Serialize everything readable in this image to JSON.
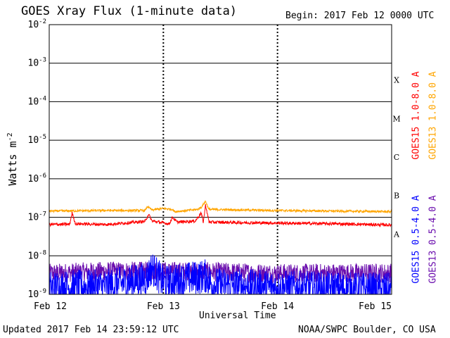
{
  "header": {
    "title": "GOES Xray Flux (1-minute data)",
    "begin": "Begin:  2017 Feb 12 0000 UTC"
  },
  "footer": {
    "updated": "Updated 2017 Feb 14 23:59:12 UTC",
    "source": "NOAA/SWPC Boulder, CO USA"
  },
  "colors": {
    "goes15_long": "#ff0000",
    "goes13_long": "#ffa500",
    "goes15_short": "#0000ff",
    "goes13_short": "#6a0dad"
  },
  "chart_data": {
    "type": "line",
    "xlabel": "Universal Time",
    "ylabel_base": "Watts m",
    "ylabel_exp": "-2",
    "yscale": "log",
    "ylim": [
      1e-09,
      0.01
    ],
    "y_ticks": [
      {
        "base": "10",
        "exp": "-2",
        "value": 0.01
      },
      {
        "base": "10",
        "exp": "-3",
        "value": 0.001
      },
      {
        "base": "10",
        "exp": "-4",
        "value": 0.0001
      },
      {
        "base": "10",
        "exp": "-5",
        "value": 1e-05
      },
      {
        "base": "10",
        "exp": "-6",
        "value": 1e-06
      },
      {
        "base": "10",
        "exp": "-7",
        "value": 1e-07
      },
      {
        "base": "10",
        "exp": "-8",
        "value": 1e-08
      },
      {
        "base": "10",
        "exp": "-9",
        "value": 1e-09
      }
    ],
    "x_ticks": [
      "Feb 12",
      "Feb 13",
      "Feb 14",
      "Feb 15"
    ],
    "flare_classes": [
      {
        "label": "X",
        "value": 0.00031
      },
      {
        "label": "M",
        "value": 3.1e-05
      },
      {
        "label": "C",
        "value": 3.1e-06
      },
      {
        "label": "B",
        "value": 3.1e-07
      },
      {
        "label": "A",
        "value": 3.1e-08
      }
    ],
    "series": [
      {
        "name": "GOES15 1.0-8.0 A",
        "key": "goes15_long",
        "points": [
          [
            0,
            6.5e-08
          ],
          [
            0.18,
            6.6e-08
          ],
          [
            0.2,
            1.3e-07
          ],
          [
            0.23,
            6.8e-08
          ],
          [
            0.5,
            6.5e-08
          ],
          [
            0.84,
            7.8e-08
          ],
          [
            0.87,
            1.2e-07
          ],
          [
            0.9,
            8e-08
          ],
          [
            1.0,
            7.2e-08
          ],
          [
            1.05,
            6.7e-08
          ],
          [
            1.08,
            1e-07
          ],
          [
            1.12,
            7.5e-08
          ],
          [
            1.28,
            8e-08
          ],
          [
            1.33,
            1.3e-07
          ],
          [
            1.35,
            7.6e-08
          ],
          [
            1.37,
            2.1e-07
          ],
          [
            1.4,
            7.5e-08
          ],
          [
            1.8,
            7.2e-08
          ],
          [
            2.5,
            6.8e-08
          ],
          [
            3.0,
            6.3e-08
          ]
        ]
      },
      {
        "name": "GOES13 1.0-8.0 A",
        "key": "goes13_long",
        "points": [
          [
            0,
            1.45e-07
          ],
          [
            0.5,
            1.5e-07
          ],
          [
            0.84,
            1.5e-07
          ],
          [
            0.86,
            1.9e-07
          ],
          [
            0.9,
            1.55e-07
          ],
          [
            1.0,
            1.7e-07
          ],
          [
            1.08,
            1.6e-07
          ],
          [
            1.1,
            1.4e-07
          ],
          [
            1.3,
            1.6e-07
          ],
          [
            1.33,
            1.8e-07
          ],
          [
            1.37,
            2.6e-07
          ],
          [
            1.4,
            1.6e-07
          ],
          [
            2.0,
            1.5e-07
          ],
          [
            3.0,
            1.4e-07
          ]
        ]
      },
      {
        "name": "GOES15 0.5-4.0 A",
        "key": "goes15_short",
        "points": [
          [
            0,
            1.5e-09
          ],
          [
            0.5,
            1.6e-09
          ],
          [
            0.85,
            2.5e-09
          ],
          [
            0.9,
            5e-09
          ],
          [
            1.0,
            2e-09
          ],
          [
            1.38,
            3e-09
          ],
          [
            1.42,
            1.8e-09
          ],
          [
            2.0,
            1.5e-09
          ],
          [
            3.0,
            1.3e-09
          ]
        ]
      },
      {
        "name": "GOES13 0.5-4.0 A",
        "key": "goes13_short",
        "points": [
          [
            0,
            3.5e-09
          ],
          [
            0.5,
            4e-09
          ],
          [
            1.0,
            4e-09
          ],
          [
            1.5,
            3.8e-09
          ],
          [
            2.0,
            3.5e-09
          ],
          [
            3.0,
            3.6e-09
          ]
        ]
      }
    ]
  }
}
